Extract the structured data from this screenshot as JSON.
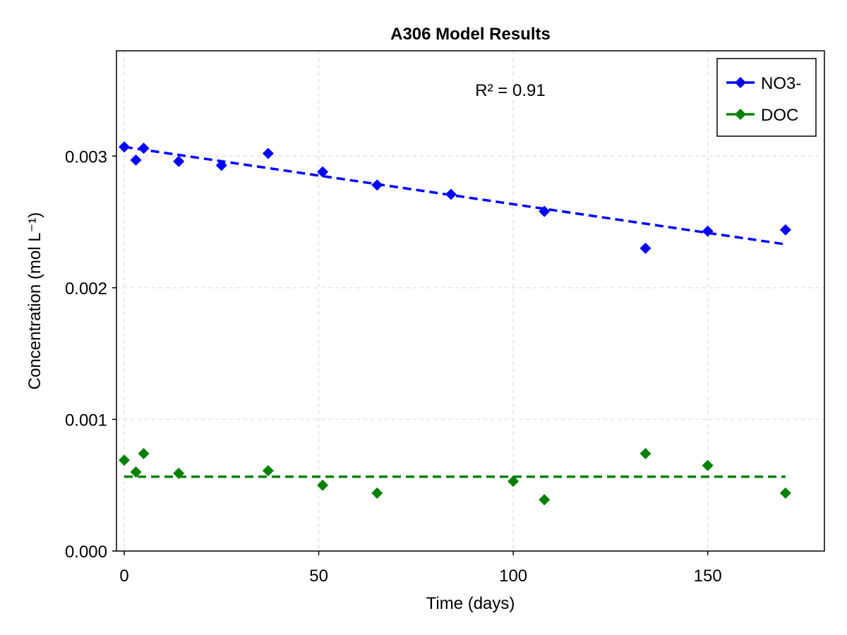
{
  "chart_data": {
    "type": "scatter",
    "title": "A306 Model Results",
    "xlabel": "Time (days)",
    "ylabel": "Concentration (mol L⁻¹)",
    "xlim": [
      -2,
      180
    ],
    "ylim": [
      0,
      0.0038
    ],
    "xticks": [
      0,
      50,
      100,
      150
    ],
    "xtick_labels": [
      "0",
      "50",
      "100",
      "150"
    ],
    "yticks": [
      0,
      0.001,
      0.002,
      0.003
    ],
    "ytick_labels": [
      "0.000",
      "0.001",
      "0.002",
      "0.003"
    ],
    "grid": true,
    "legend_position": "top-right",
    "annotation": "R² = 0.91",
    "series": [
      {
        "name": "NO3-",
        "color": "#0000ff",
        "marker": "diamond",
        "x": [
          0,
          3,
          5,
          14,
          25,
          37,
          51,
          65,
          84,
          108,
          134,
          150,
          170
        ],
        "y": [
          0.00307,
          0.00297,
          0.00306,
          0.00296,
          0.00293,
          0.00302,
          0.00288,
          0.00278,
          0.00271,
          0.00258,
          0.0023,
          0.00243,
          0.00244
        ],
        "fit": {
          "x": [
            0,
            170
          ],
          "y": [
            0.00307,
            0.00233
          ]
        }
      },
      {
        "name": "DOC",
        "color": "#008000",
        "marker": "diamond",
        "x": [
          0,
          3,
          5,
          14,
          37,
          51,
          65,
          100,
          108,
          134,
          150,
          170
        ],
        "y": [
          0.00069,
          0.0006,
          0.00074,
          0.00059,
          0.00061,
          0.0005,
          0.00044,
          0.00053,
          0.00039,
          0.00074,
          0.00065,
          0.00044
        ],
        "fit": {
          "x": [
            0,
            170
          ],
          "y": [
            0.000565,
            0.000565
          ]
        }
      }
    ]
  }
}
